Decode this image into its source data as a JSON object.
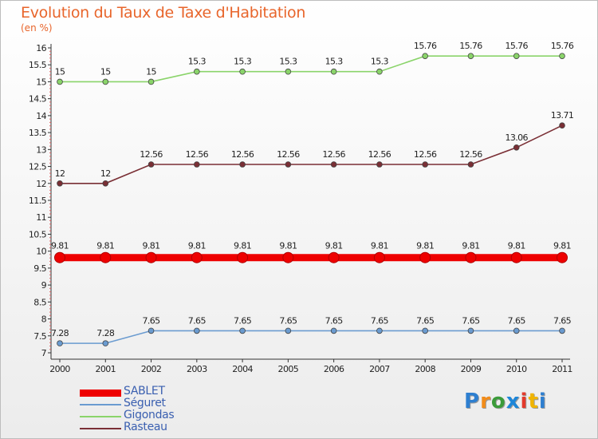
{
  "title": "Evolution du Taux de Taxe d'Habitation",
  "unit": "(en %)",
  "logo": {
    "text": "Proxiti",
    "letter_colors": [
      "#2e7fd0",
      "#f28c1a",
      "#3b9b3a",
      "#1e86d8",
      "#e33a2c",
      "#f0b400",
      "#2e7fd0"
    ]
  },
  "chart_data": {
    "type": "line",
    "title": "Evolution du Taux de Taxe d'Habitation",
    "ylabel": "(en %)",
    "xlabel": "",
    "ylim": [
      7,
      16
    ],
    "yticks": [
      "7",
      "7.5",
      "8",
      "8.5",
      "9",
      "9.5",
      "10",
      "10.5",
      "11",
      "11.5",
      "12",
      "12.5",
      "13",
      "13.5",
      "14",
      "14.5",
      "15",
      "15.5",
      "16"
    ],
    "categories": [
      "2000",
      "2001",
      "2002",
      "2003",
      "2004",
      "2005",
      "2006",
      "2007",
      "2008",
      "2009",
      "2010",
      "2011"
    ],
    "legend_position": "bottom-left",
    "series": [
      {
        "name": "SABLET",
        "color": "#ee0000",
        "values": [
          9.81,
          9.81,
          9.81,
          9.81,
          9.81,
          9.81,
          9.81,
          9.81,
          9.81,
          9.81,
          9.81,
          9.81
        ],
        "labels": [
          "9.81",
          "9.81",
          "9.81",
          "9.81",
          "9.81",
          "9.81",
          "9.81",
          "9.81",
          "9.81",
          "9.81",
          "9.81",
          "9.81"
        ]
      },
      {
        "name": "Séguret",
        "color": "#6a9bd0",
        "values": [
          7.28,
          7.28,
          7.65,
          7.65,
          7.65,
          7.65,
          7.65,
          7.65,
          7.65,
          7.65,
          7.65,
          7.65
        ],
        "labels": [
          "7.28",
          "7.28",
          "7.65",
          "7.65",
          "7.65",
          "7.65",
          "7.65",
          "7.65",
          "7.65",
          "7.65",
          "7.65",
          "7.65"
        ]
      },
      {
        "name": "Gigondas",
        "color": "#8ad46a",
        "values": [
          15,
          15,
          15,
          15.3,
          15.3,
          15.3,
          15.3,
          15.3,
          15.76,
          15.76,
          15.76,
          15.76
        ],
        "labels": [
          "15",
          "15",
          "15",
          "15.3",
          "15.3",
          "15.3",
          "15.3",
          "15.3",
          "15.76",
          "15.76",
          "15.76",
          "15.76"
        ]
      },
      {
        "name": "Rasteau",
        "color": "#7a2f35",
        "values": [
          12,
          12,
          12.56,
          12.56,
          12.56,
          12.56,
          12.56,
          12.56,
          12.56,
          12.56,
          13.06,
          13.71
        ],
        "labels": [
          "12",
          "12",
          "12.56",
          "12.56",
          "12.56",
          "12.56",
          "12.56",
          "12.56",
          "12.56",
          "12.56",
          "13.06",
          "13.71"
        ]
      }
    ]
  }
}
